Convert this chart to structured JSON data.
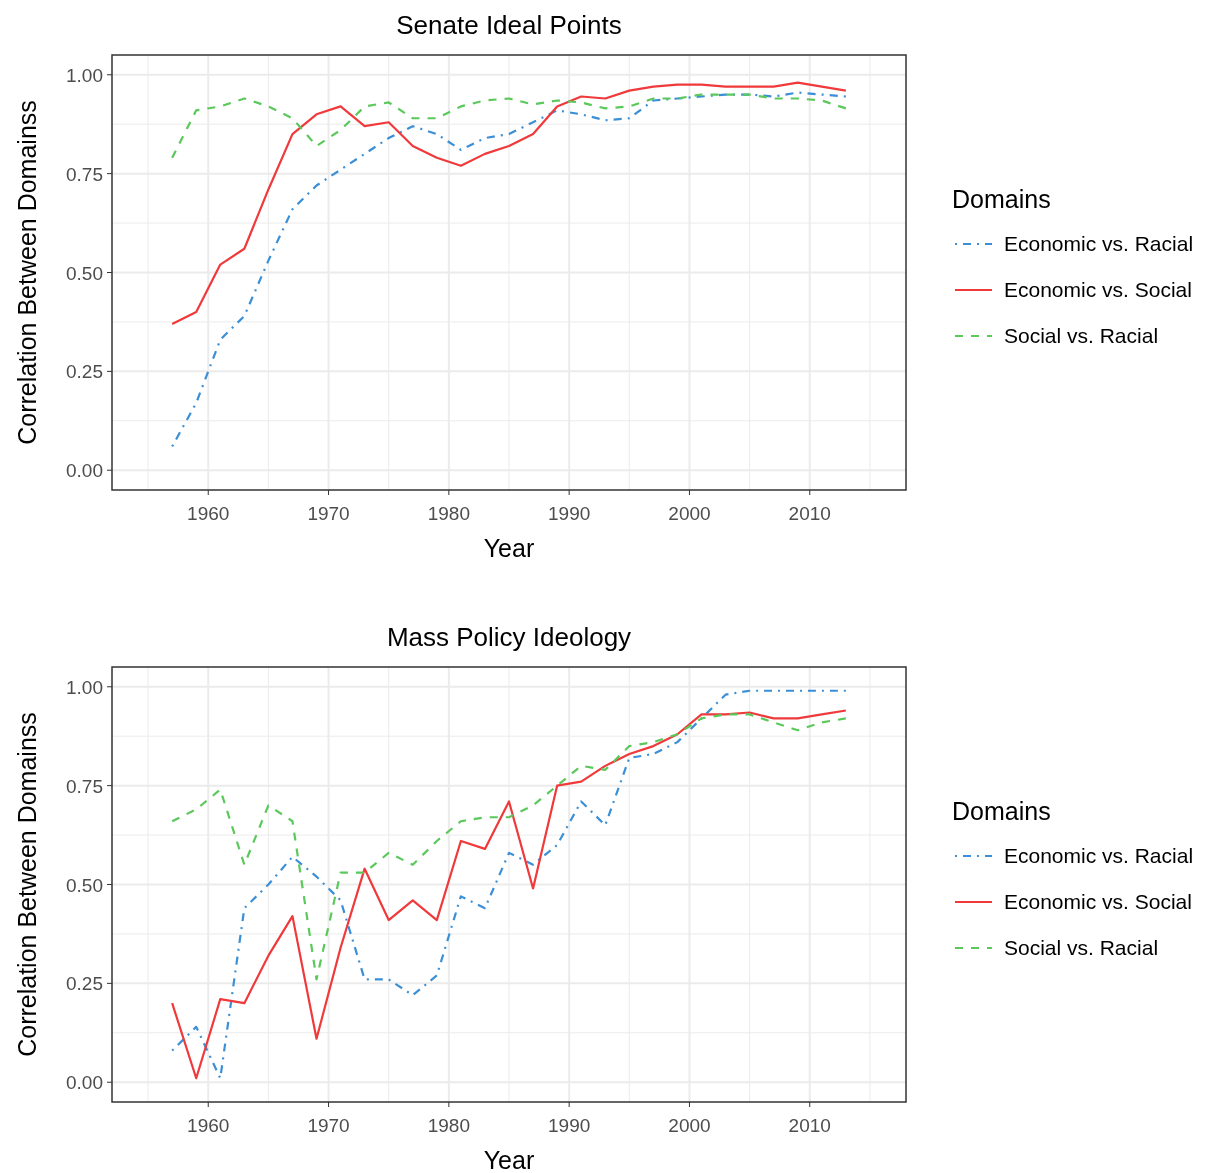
{
  "chart_data": [
    {
      "type": "line",
      "title": "Senate Ideal Points",
      "xlabel": "Year",
      "ylabel": "Correlation Between Domainss",
      "legend_title": "Domains",
      "legend": "right",
      "grid": true,
      "x": [
        1957,
        1959,
        1961,
        1963,
        1965,
        1967,
        1969,
        1971,
        1973,
        1975,
        1977,
        1979,
        1981,
        1983,
        1985,
        1987,
        1989,
        1991,
        1993,
        1995,
        1997,
        1999,
        2001,
        2003,
        2005,
        2007,
        2009,
        2011,
        2013
      ],
      "xlim": [
        1952,
        2018
      ],
      "xticks": [
        1960,
        1970,
        1980,
        1990,
        2000,
        2010
      ],
      "ylim": [
        -0.05,
        1.05
      ],
      "yticks": [
        {
          "value": 0,
          "label": "0.00"
        },
        {
          "value": 0.25,
          "label": "0.25"
        },
        {
          "value": 0.5,
          "label": "0.50"
        },
        {
          "value": 0.75,
          "label": "0.75"
        },
        {
          "value": 1,
          "label": "1.00"
        }
      ],
      "series": [
        {
          "name": "Economic vs. Racial",
          "color": "#3a8fd6",
          "line_style": "dashdot",
          "values": [
            0.06,
            0.17,
            0.33,
            0.39,
            0.53,
            0.66,
            0.72,
            0.76,
            0.8,
            0.84,
            0.87,
            0.85,
            0.81,
            0.84,
            0.85,
            0.88,
            0.91,
            0.9,
            0.885,
            0.89,
            0.935,
            0.94,
            0.945,
            0.95,
            0.95,
            0.945,
            0.955,
            0.95,
            0.945
          ]
        },
        {
          "name": "Economic vs. Social",
          "color": "#f0393b",
          "line_style": "solid",
          "values": [
            0.37,
            0.4,
            0.52,
            0.56,
            0.71,
            0.85,
            0.9,
            0.92,
            0.87,
            0.88,
            0.82,
            0.79,
            0.77,
            0.8,
            0.82,
            0.85,
            0.92,
            0.945,
            0.94,
            0.96,
            0.97,
            0.975,
            0.975,
            0.97,
            0.97,
            0.97,
            0.98,
            0.97,
            0.96
          ]
        },
        {
          "name": "Social vs. Racial",
          "color": "#5ac85a",
          "line_style": "dashed",
          "values": [
            0.79,
            0.91,
            0.92,
            0.94,
            0.92,
            0.89,
            0.82,
            0.86,
            0.92,
            0.93,
            0.89,
            0.89,
            0.92,
            0.935,
            0.94,
            0.925,
            0.935,
            0.93,
            0.915,
            0.92,
            0.94,
            0.94,
            0.95,
            0.95,
            0.95,
            0.94,
            0.94,
            0.935,
            0.915
          ]
        }
      ]
    },
    {
      "type": "line",
      "title": "Mass Policy Ideology",
      "xlabel": "Year",
      "ylabel": "Correlation Between Domainss",
      "legend_title": "Domains",
      "legend": "right",
      "grid": true,
      "x": [
        1957,
        1959,
        1961,
        1963,
        1965,
        1967,
        1969,
        1971,
        1973,
        1975,
        1977,
        1979,
        1981,
        1983,
        1985,
        1987,
        1989,
        1991,
        1993,
        1995,
        1997,
        1999,
        2001,
        2003,
        2005,
        2007,
        2009,
        2011,
        2013
      ],
      "xlim": [
        1952,
        2018
      ],
      "xticks": [
        1960,
        1970,
        1980,
        1990,
        2000,
        2010
      ],
      "ylim": [
        -0.05,
        1.05
      ],
      "yticks": [
        {
          "value": 0,
          "label": "0.00"
        },
        {
          "value": 0.25,
          "label": "0.25"
        },
        {
          "value": 0.5,
          "label": "0.50"
        },
        {
          "value": 0.75,
          "label": "0.75"
        },
        {
          "value": 1,
          "label": "1.00"
        }
      ],
      "series": [
        {
          "name": "Economic vs. Racial",
          "color": "#3a8fd6",
          "line_style": "dashdot",
          "values": [
            0.08,
            0.14,
            0.01,
            0.44,
            0.5,
            0.57,
            0.52,
            0.46,
            0.26,
            0.26,
            0.22,
            0.27,
            0.47,
            0.44,
            0.58,
            0.55,
            0.6,
            0.71,
            0.65,
            0.82,
            0.83,
            0.86,
            0.92,
            0.98,
            0.99,
            0.99,
            0.99,
            0.99,
            0.99
          ]
        },
        {
          "name": "Economic vs. Social",
          "color": "#f0393b",
          "line_style": "solid",
          "values": [
            0.2,
            0.01,
            0.21,
            0.2,
            0.32,
            0.42,
            0.11,
            0.34,
            0.54,
            0.41,
            0.46,
            0.41,
            0.61,
            0.59,
            0.71,
            0.49,
            0.75,
            0.76,
            0.8,
            0.83,
            0.85,
            0.88,
            0.93,
            0.93,
            0.935,
            0.92,
            0.92,
            0.93,
            0.94
          ]
        },
        {
          "name": "Social vs. Racial",
          "color": "#5ac85a",
          "line_style": "dashed",
          "values": [
            0.66,
            0.69,
            0.74,
            0.55,
            0.7,
            0.66,
            0.26,
            0.53,
            0.53,
            0.58,
            0.55,
            0.61,
            0.66,
            0.67,
            0.67,
            0.7,
            0.75,
            0.8,
            0.79,
            0.85,
            0.86,
            0.88,
            0.92,
            0.93,
            0.93,
            0.91,
            0.89,
            0.91,
            0.92
          ]
        }
      ]
    }
  ]
}
